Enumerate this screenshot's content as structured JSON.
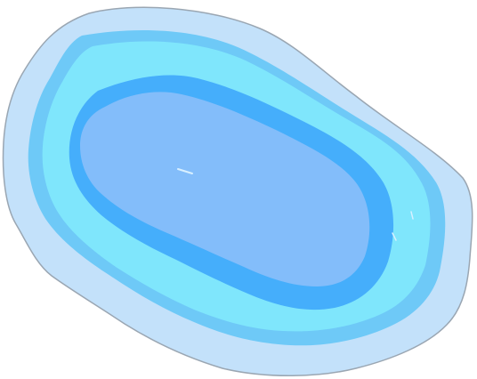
{
  "sprite": {
    "name": "water-pond",
    "layers": [
      {
        "id": "outer-halo",
        "color": "#c3e1fa",
        "stroke": "#9aa6b2"
      },
      {
        "id": "shallow-ring-a",
        "color": "#6ec9f7"
      },
      {
        "id": "shallow-ring-b",
        "color": "#7fe6fc"
      },
      {
        "id": "mid-ring",
        "color": "#45aefb"
      },
      {
        "id": "deep-center",
        "color": "#83bdfa"
      }
    ],
    "highlight_color": "#d8f0ff"
  }
}
